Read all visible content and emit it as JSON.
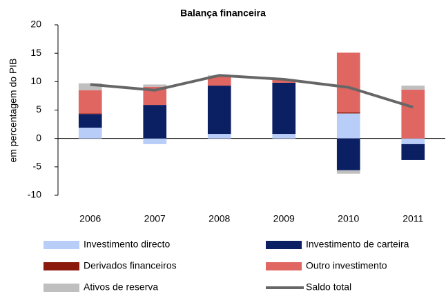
{
  "chart_data": {
    "type": "bar",
    "stacked": true,
    "title": "Balança financeira",
    "y_label": "em percentagem do PIB",
    "categories": [
      "2006",
      "2007",
      "2008",
      "2009",
      "2010",
      "2011"
    ],
    "series": [
      {
        "name": "Investimento directo",
        "color": "#b8cdf8",
        "values": [
          1.9,
          -1.0,
          0.8,
          0.8,
          4.4,
          -1.0
        ]
      },
      {
        "name": "Investimento de carteira",
        "color": "#0b1f63",
        "values": [
          2.4,
          5.9,
          8.5,
          9.0,
          -5.6,
          -2.8
        ]
      },
      {
        "name": "Derivados financeiros",
        "color": "#8b1a0e",
        "values": [
          0.1,
          0.0,
          0.0,
          0.0,
          0.2,
          0.0
        ]
      },
      {
        "name": "Outro investimento",
        "color": "#e06661",
        "values": [
          4.1,
          3.2,
          1.6,
          0.5,
          10.5,
          8.6
        ]
      },
      {
        "name": "Ativos de reserva",
        "color": "#bfbfbf",
        "values": [
          1.2,
          0.4,
          0.2,
          0.0,
          -0.6,
          0.7
        ]
      },
      {
        "name": "Saldo total",
        "type": "line",
        "color": "#666666",
        "values": [
          9.5,
          8.5,
          11.1,
          10.4,
          9.0,
          5.5
        ]
      }
    ],
    "ylim": [
      -10,
      20
    ],
    "yticks": [
      -10,
      -5,
      0,
      5,
      10,
      15,
      20
    ]
  }
}
